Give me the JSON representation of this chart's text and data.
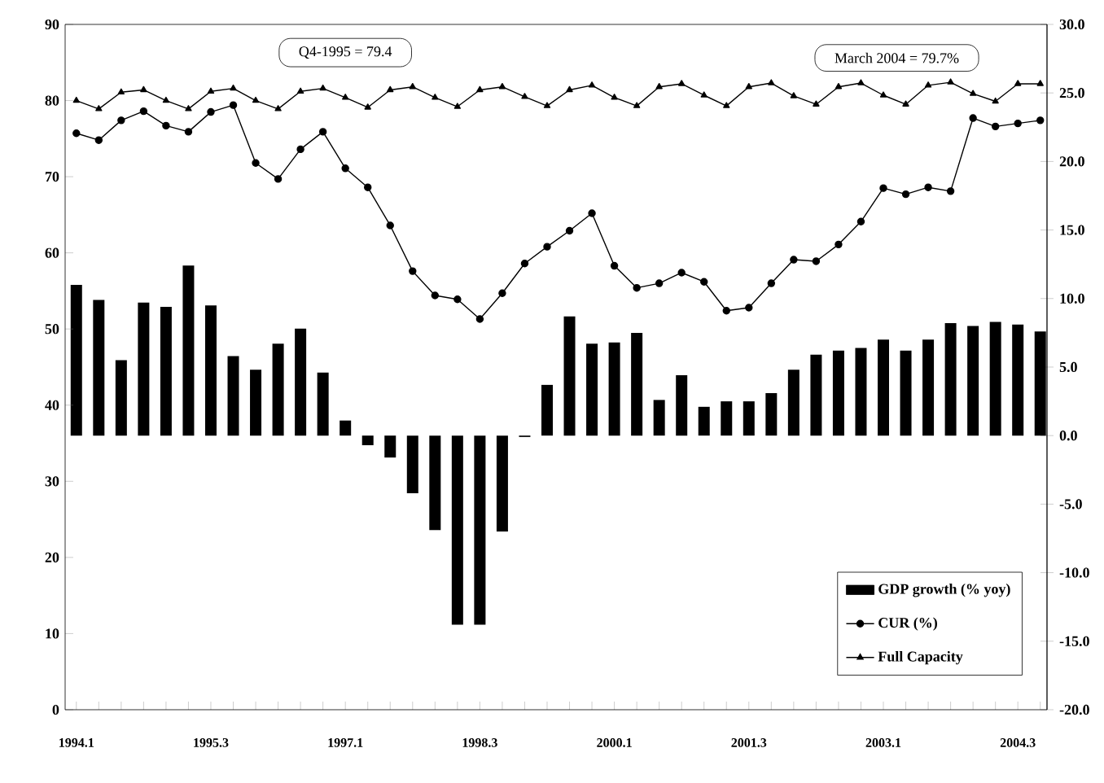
{
  "chart_data": {
    "type": "bar",
    "categories": [
      "1994.1",
      null,
      null,
      null,
      null,
      null,
      "1995.3",
      null,
      null,
      null,
      null,
      null,
      "1997.1",
      null,
      null,
      null,
      null,
      null,
      "1998.3",
      null,
      null,
      null,
      null,
      null,
      "2000.1",
      null,
      null,
      null,
      null,
      null,
      "2001.3",
      null,
      null,
      null,
      null,
      null,
      "2003.1",
      null,
      null,
      null,
      null,
      null,
      "2004.3",
      null
    ],
    "series": [
      {
        "name": "GDP growth (% yoy)",
        "axis": "y2",
        "color": "#000000",
        "values": [
          11.0,
          9.9,
          5.5,
          9.7,
          9.4,
          12.4,
          9.5,
          5.8,
          4.8,
          6.7,
          7.8,
          4.6,
          1.1,
          -0.7,
          -1.6,
          -4.2,
          -6.9,
          -13.8,
          -13.8,
          -7.0,
          -0.1,
          3.7,
          8.7,
          6.7,
          6.8,
          7.5,
          2.6,
          4.4,
          2.1,
          2.5,
          2.5,
          3.1,
          4.8,
          5.9,
          6.2,
          6.4,
          7.0,
          6.2,
          7.0,
          8.2,
          8.0,
          8.3,
          8.1,
          7.6
        ]
      },
      {
        "name": "CUR (%)",
        "type": "line",
        "marker": "circle",
        "color": "#000000",
        "values": [
          75.7,
          74.8,
          77.4,
          78.6,
          76.7,
          75.9,
          78.5,
          79.4,
          71.8,
          69.7,
          73.6,
          75.9,
          71.1,
          68.6,
          63.6,
          57.6,
          54.4,
          53.9,
          51.3,
          54.7,
          58.6,
          60.8,
          62.9,
          65.2,
          58.3,
          55.4,
          56.0,
          57.4,
          56.2,
          52.4,
          52.8,
          56.0,
          59.1,
          58.9,
          61.1,
          64.1,
          68.5,
          67.7,
          68.6,
          68.1,
          77.7,
          76.6,
          77.0,
          77.4
        ]
      },
      {
        "name": "Full Capacity",
        "type": "line",
        "marker": "triangle",
        "color": "#000000",
        "values": [
          80.0,
          78.9,
          81.1,
          81.4,
          80.0,
          78.9,
          81.2,
          81.6,
          80.0,
          78.9,
          81.2,
          81.6,
          80.4,
          79.1,
          81.4,
          81.8,
          80.4,
          79.2,
          81.4,
          81.8,
          80.5,
          79.3,
          81.4,
          82.0,
          80.4,
          79.3,
          81.8,
          82.2,
          80.7,
          79.3,
          81.8,
          82.3,
          80.6,
          79.5,
          81.8,
          82.3,
          80.7,
          79.5,
          82.0,
          82.4,
          80.9,
          79.9,
          82.2,
          82.2
        ]
      }
    ],
    "ylim": [
      0,
      90
    ],
    "yticks": [
      0,
      10,
      20,
      30,
      40,
      50,
      60,
      70,
      80,
      90
    ],
    "y2lim": [
      -20,
      30
    ],
    "y2ticks": [
      {
        "value": -20,
        "label": "-20.0"
      },
      {
        "value": -15,
        "label": "-15.0"
      },
      {
        "value": -10,
        "label": "-10.0"
      },
      {
        "value": -5,
        "label": "-5.0"
      },
      {
        "value": 0,
        "label": "0.0"
      },
      {
        "value": 5,
        "label": "5.0"
      },
      {
        "value": 10,
        "label": "10.0"
      },
      {
        "value": 15,
        "label": "15.0"
      },
      {
        "value": 20,
        "label": "20.0"
      },
      {
        "value": 25,
        "label": "25.0"
      },
      {
        "value": 30,
        "label": "30.0"
      }
    ],
    "annotations": [
      "Q4-1995 = 79.4",
      "March 2004 = 79.7%"
    ],
    "legend": "bottom right"
  }
}
